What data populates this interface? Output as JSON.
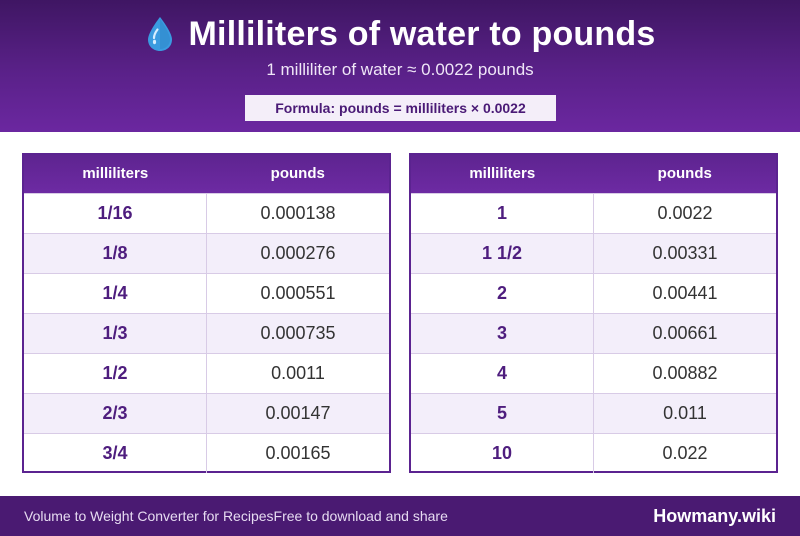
{
  "header": {
    "icon": "water-drop-icon",
    "title": "Milliliters of water to pounds",
    "subtitle": "1 milliliter of water ≈ 0.0022 pounds",
    "formula": "Formula: pounds = milliliters × 0.0022"
  },
  "colors": {
    "header_purple": "#5a2189",
    "accent_purple": "#4e1d7e",
    "stripe": "#f3eefa",
    "drop_blue": "#3a9be0"
  },
  "tables": [
    {
      "headers": [
        "milliliters",
        "pounds"
      ],
      "rows": [
        {
          "ml": "1/16",
          "lb": "0.000138"
        },
        {
          "ml": "1/8",
          "lb": "0.000276"
        },
        {
          "ml": "1/4",
          "lb": "0.000551"
        },
        {
          "ml": "1/3",
          "lb": "0.000735"
        },
        {
          "ml": "1/2",
          "lb": "0.0011"
        },
        {
          "ml": "2/3",
          "lb": "0.00147"
        },
        {
          "ml": "3/4",
          "lb": "0.00165"
        }
      ]
    },
    {
      "headers": [
        "milliliters",
        "pounds"
      ],
      "rows": [
        {
          "ml": "1",
          "lb": "0.0022"
        },
        {
          "ml": "1 1/2",
          "lb": "0.00331"
        },
        {
          "ml": "2",
          "lb": "0.00441"
        },
        {
          "ml": "3",
          "lb": "0.00661"
        },
        {
          "ml": "4",
          "lb": "0.00882"
        },
        {
          "ml": "5",
          "lb": "0.011"
        },
        {
          "ml": "10",
          "lb": "0.022"
        }
      ]
    }
  ],
  "footer": {
    "left_text_1": "Volume to Weight Converter for Recipes",
    "left_text_2": "Free to download and share",
    "brand": "Howmany.wiki"
  }
}
